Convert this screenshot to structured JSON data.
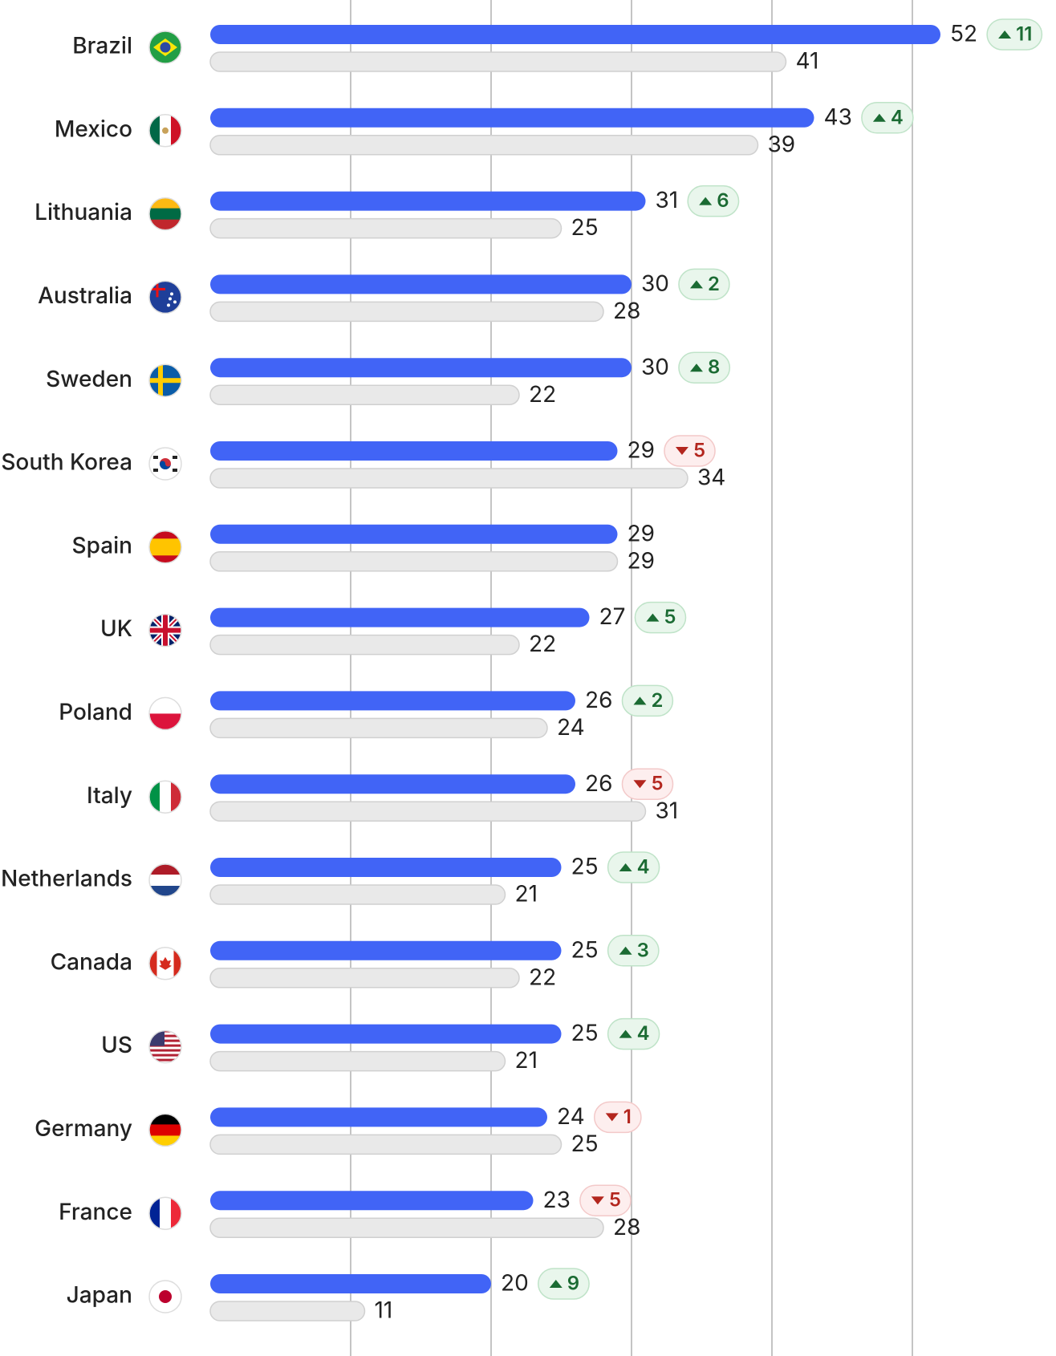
{
  "chart_data": {
    "type": "bar",
    "categories": [
      "Brazil",
      "Mexico",
      "Lithuania",
      "Australia",
      "Sweden",
      "South Korea",
      "Spain",
      "UK",
      "Poland",
      "Italy",
      "Netherlands",
      "Canada",
      "US",
      "Germany",
      "France",
      "Japan"
    ],
    "series": [
      {
        "color": "#4164f6",
        "values": [
          52,
          43,
          31,
          30,
          30,
          29,
          29,
          27,
          26,
          26,
          25,
          25,
          25,
          24,
          23,
          20
        ]
      },
      {
        "color": "#e9e9e9",
        "values": [
          41,
          39,
          25,
          28,
          22,
          34,
          29,
          22,
          24,
          31,
          21,
          22,
          21,
          25,
          28,
          11
        ]
      }
    ],
    "changes": [
      11,
      4,
      6,
      2,
      8,
      -5,
      null,
      5,
      2,
      -5,
      4,
      3,
      4,
      -1,
      -5,
      9
    ],
    "change_labels": [
      "11",
      "4",
      "6",
      "2",
      "8",
      "5",
      null,
      "5",
      "2",
      "5",
      "4",
      "3",
      "4",
      "1",
      "5",
      "9"
    ],
    "xlim": [
      0,
      60
    ],
    "xticks": [
      10,
      20,
      30,
      40,
      50
    ],
    "grid": true
  }
}
